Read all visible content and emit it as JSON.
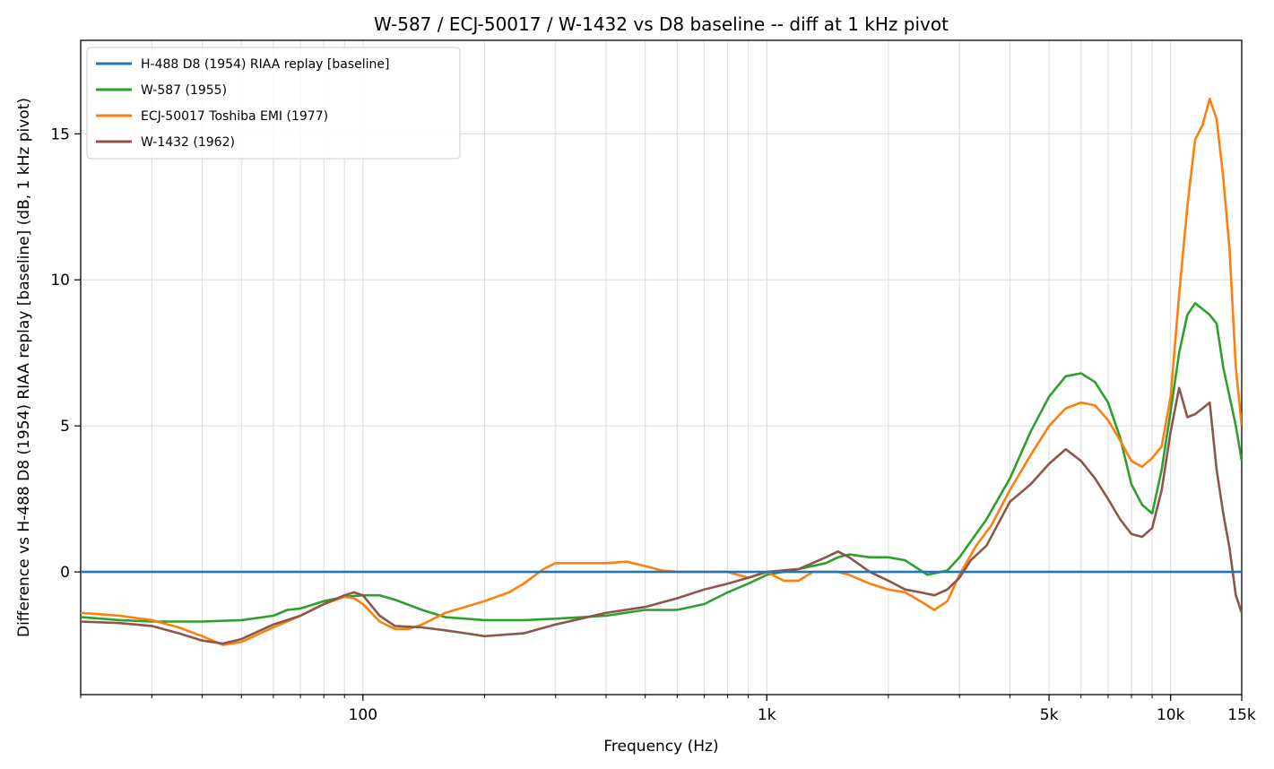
{
  "chart_data": {
    "type": "line",
    "title": "W-587 / ECJ-50017 / W-1432 vs D8 baseline -- diff at 1 kHz pivot",
    "xlabel": "Frequency (Hz)",
    "ylabel": "Difference vs H-488 D8 (1954) RIAA replay [baseline] (dB, 1 kHz pivot)",
    "xscale": "log",
    "xlim": [
      20,
      15000
    ],
    "ylim": [
      -4.2,
      18.2
    ],
    "x_ticks": [
      {
        "value": 100,
        "label": "100"
      },
      {
        "value": 1000,
        "label": "1k"
      },
      {
        "value": 5000,
        "label": "5k"
      },
      {
        "value": 10000,
        "label": "10k"
      },
      {
        "value": 15000,
        "label": "15k"
      }
    ],
    "y_ticks": [
      {
        "value": 0,
        "label": "0"
      },
      {
        "value": 5,
        "label": "5"
      },
      {
        "value": 10,
        "label": "10"
      },
      {
        "value": 15,
        "label": "15"
      }
    ],
    "grid": true,
    "legend_position": "upper-left",
    "series": [
      {
        "name": "H-488 D8 (1954) RIAA replay [baseline]",
        "color": "#1f77b4",
        "points": [
          [
            20,
            0
          ],
          [
            15000,
            0
          ]
        ]
      },
      {
        "name": "W-587 (1955)",
        "color": "#2ca02c",
        "points": [
          [
            20,
            -1.55
          ],
          [
            25,
            -1.65
          ],
          [
            30,
            -1.7
          ],
          [
            40,
            -1.7
          ],
          [
            50,
            -1.65
          ],
          [
            60,
            -1.5
          ],
          [
            65,
            -1.3
          ],
          [
            70,
            -1.25
          ],
          [
            80,
            -1.0
          ],
          [
            90,
            -0.85
          ],
          [
            100,
            -0.8
          ],
          [
            110,
            -0.8
          ],
          [
            120,
            -0.95
          ],
          [
            140,
            -1.3
          ],
          [
            160,
            -1.55
          ],
          [
            200,
            -1.65
          ],
          [
            250,
            -1.65
          ],
          [
            300,
            -1.6
          ],
          [
            400,
            -1.5
          ],
          [
            500,
            -1.3
          ],
          [
            600,
            -1.3
          ],
          [
            700,
            -1.1
          ],
          [
            800,
            -0.7
          ],
          [
            900,
            -0.4
          ],
          [
            1000,
            -0.1
          ],
          [
            1200,
            0.1
          ],
          [
            1400,
            0.3
          ],
          [
            1500,
            0.5
          ],
          [
            1600,
            0.6
          ],
          [
            1800,
            0.5
          ],
          [
            2000,
            0.5
          ],
          [
            2200,
            0.4
          ],
          [
            2500,
            -0.1
          ],
          [
            2800,
            0.05
          ],
          [
            3000,
            0.5
          ],
          [
            3500,
            1.8
          ],
          [
            4000,
            3.2
          ],
          [
            4500,
            4.8
          ],
          [
            5000,
            6.0
          ],
          [
            5500,
            6.7
          ],
          [
            6000,
            6.8
          ],
          [
            6500,
            6.5
          ],
          [
            7000,
            5.8
          ],
          [
            7500,
            4.6
          ],
          [
            8000,
            3.0
          ],
          [
            8500,
            2.3
          ],
          [
            9000,
            2.0
          ],
          [
            9500,
            3.5
          ],
          [
            10000,
            5.5
          ],
          [
            10500,
            7.5
          ],
          [
            11000,
            8.8
          ],
          [
            11500,
            9.2
          ],
          [
            12000,
            9.0
          ],
          [
            12500,
            8.8
          ],
          [
            13000,
            8.5
          ],
          [
            13500,
            7.0
          ],
          [
            14000,
            6.0
          ],
          [
            14500,
            5.0
          ],
          [
            15000,
            3.8
          ]
        ]
      },
      {
        "name": "ECJ-50017 Toshiba EMI (1977)",
        "color": "#ff7f0e",
        "points": [
          [
            20,
            -1.4
          ],
          [
            25,
            -1.5
          ],
          [
            30,
            -1.65
          ],
          [
            35,
            -1.9
          ],
          [
            40,
            -2.2
          ],
          [
            45,
            -2.5
          ],
          [
            50,
            -2.4
          ],
          [
            60,
            -1.9
          ],
          [
            70,
            -1.5
          ],
          [
            80,
            -1.1
          ],
          [
            90,
            -0.85
          ],
          [
            95,
            -0.9
          ],
          [
            100,
            -1.1
          ],
          [
            110,
            -1.7
          ],
          [
            120,
            -1.95
          ],
          [
            130,
            -1.95
          ],
          [
            140,
            -1.8
          ],
          [
            160,
            -1.4
          ],
          [
            200,
            -1.0
          ],
          [
            230,
            -0.7
          ],
          [
            250,
            -0.4
          ],
          [
            280,
            0.1
          ],
          [
            300,
            0.3
          ],
          [
            350,
            0.3
          ],
          [
            400,
            0.3
          ],
          [
            450,
            0.35
          ],
          [
            500,
            0.2
          ],
          [
            550,
            0.05
          ],
          [
            600,
            0.0
          ],
          [
            700,
            0.0
          ],
          [
            800,
            0.0
          ],
          [
            900,
            -0.2
          ],
          [
            1000,
            0.0
          ],
          [
            1100,
            -0.3
          ],
          [
            1200,
            -0.3
          ],
          [
            1300,
            0.0
          ],
          [
            1400,
            0.0
          ],
          [
            1500,
            0.0
          ],
          [
            1600,
            -0.1
          ],
          [
            1800,
            -0.4
          ],
          [
            2000,
            -0.6
          ],
          [
            2200,
            -0.7
          ],
          [
            2400,
            -1.0
          ],
          [
            2600,
            -1.3
          ],
          [
            2800,
            -1.0
          ],
          [
            3000,
            -0.1
          ],
          [
            3300,
            0.9
          ],
          [
            3600,
            1.6
          ],
          [
            4000,
            2.8
          ],
          [
            4500,
            4.0
          ],
          [
            5000,
            5.0
          ],
          [
            5500,
            5.6
          ],
          [
            6000,
            5.8
          ],
          [
            6500,
            5.7
          ],
          [
            7000,
            5.2
          ],
          [
            7500,
            4.5
          ],
          [
            8000,
            3.8
          ],
          [
            8500,
            3.6
          ],
          [
            9000,
            3.9
          ],
          [
            9500,
            4.3
          ],
          [
            10000,
            6.0
          ],
          [
            10500,
            9.5
          ],
          [
            11000,
            12.5
          ],
          [
            11500,
            14.8
          ],
          [
            12000,
            15.3
          ],
          [
            12500,
            16.2
          ],
          [
            13000,
            15.5
          ],
          [
            13500,
            13.5
          ],
          [
            14000,
            11.0
          ],
          [
            14500,
            7.0
          ],
          [
            15000,
            5.0
          ]
        ]
      },
      {
        "name": "W-1432 (1962)",
        "color": "#8c564b",
        "points": [
          [
            20,
            -1.7
          ],
          [
            25,
            -1.75
          ],
          [
            30,
            -1.85
          ],
          [
            35,
            -2.1
          ],
          [
            40,
            -2.35
          ],
          [
            45,
            -2.45
          ],
          [
            50,
            -2.3
          ],
          [
            60,
            -1.8
          ],
          [
            70,
            -1.5
          ],
          [
            80,
            -1.1
          ],
          [
            90,
            -0.8
          ],
          [
            95,
            -0.7
          ],
          [
            100,
            -0.8
          ],
          [
            110,
            -1.5
          ],
          [
            120,
            -1.85
          ],
          [
            140,
            -1.9
          ],
          [
            160,
            -2.0
          ],
          [
            180,
            -2.1
          ],
          [
            200,
            -2.2
          ],
          [
            250,
            -2.1
          ],
          [
            300,
            -1.8
          ],
          [
            400,
            -1.4
          ],
          [
            500,
            -1.2
          ],
          [
            600,
            -0.9
          ],
          [
            700,
            -0.6
          ],
          [
            800,
            -0.4
          ],
          [
            900,
            -0.2
          ],
          [
            1000,
            0.0
          ],
          [
            1200,
            0.1
          ],
          [
            1400,
            0.5
          ],
          [
            1500,
            0.7
          ],
          [
            1600,
            0.5
          ],
          [
            1800,
            0.0
          ],
          [
            2000,
            -0.3
          ],
          [
            2200,
            -0.6
          ],
          [
            2400,
            -0.7
          ],
          [
            2600,
            -0.8
          ],
          [
            2800,
            -0.6
          ],
          [
            3000,
            -0.2
          ],
          [
            3200,
            0.4
          ],
          [
            3500,
            0.9
          ],
          [
            4000,
            2.4
          ],
          [
            4500,
            3.0
          ],
          [
            5000,
            3.7
          ],
          [
            5500,
            4.2
          ],
          [
            6000,
            3.8
          ],
          [
            6500,
            3.2
          ],
          [
            7000,
            2.5
          ],
          [
            7500,
            1.8
          ],
          [
            8000,
            1.3
          ],
          [
            8500,
            1.2
          ],
          [
            9000,
            1.5
          ],
          [
            9500,
            2.8
          ],
          [
            10000,
            4.8
          ],
          [
            10500,
            6.3
          ],
          [
            11000,
            5.3
          ],
          [
            11500,
            5.4
          ],
          [
            12000,
            5.6
          ],
          [
            12500,
            5.8
          ],
          [
            13000,
            3.5
          ],
          [
            13500,
            2.0
          ],
          [
            14000,
            0.8
          ],
          [
            14500,
            -0.8
          ],
          [
            15000,
            -1.4
          ]
        ]
      }
    ]
  }
}
